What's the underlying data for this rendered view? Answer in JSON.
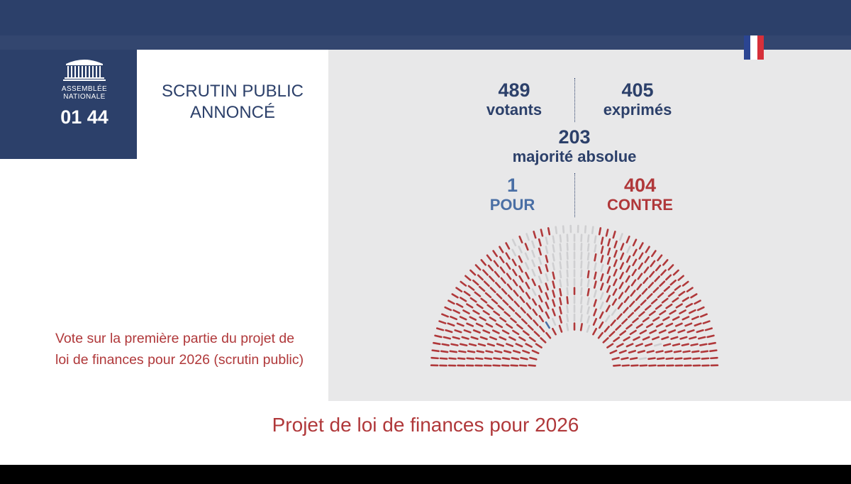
{
  "colors": {
    "navy": "#2c406a",
    "red": "#b0383a",
    "pour_blue": "#4a6fa5",
    "seat_grey": "#cfcfd1",
    "flag_blue": "#2b4592",
    "flag_white": "#ffffff",
    "flag_red": "#d6303a"
  },
  "logo": {
    "icon": "assemblee-building-icon",
    "line1": "ASSEMBLÉE",
    "line2": "NATIONALE"
  },
  "clock": "01 44",
  "card": {
    "line1": "SCRUTIN PUBLIC",
    "line2": "ANNONCÉ"
  },
  "stats": {
    "votants": {
      "value": "489",
      "label": "votants"
    },
    "exprimes": {
      "value": "405",
      "label": "exprimés"
    },
    "majorite": {
      "value": "203",
      "label": "majorité absolue"
    },
    "pour": {
      "value": "1",
      "label": "POUR"
    },
    "contre": {
      "value": "404",
      "label": "CONTRE"
    }
  },
  "description": "Vote sur la première partie du projet de loi de finances pour 2026 (scrutin public)",
  "bottom_title": "Projet de loi de finances pour 2026",
  "hemicycle": {
    "total_votants": 489,
    "pour": 1,
    "contre": 404
  }
}
